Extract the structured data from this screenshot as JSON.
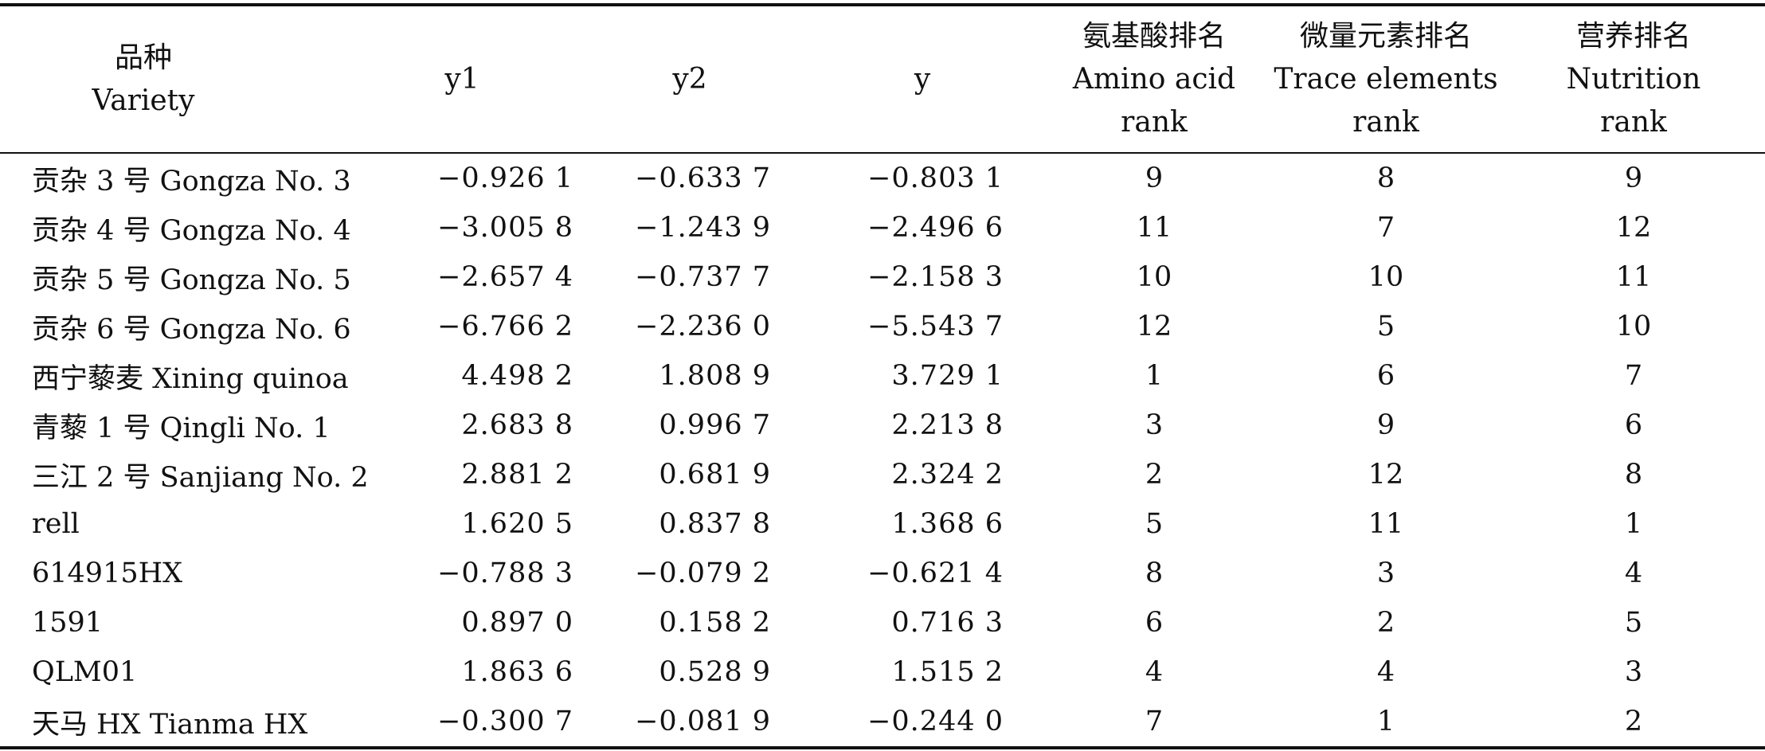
{
  "table": {
    "headers": {
      "variety": [
        "品种",
        "Variety"
      ],
      "y1": [
        "y1"
      ],
      "y2": [
        "y2"
      ],
      "y": [
        "y"
      ],
      "amino_rank": [
        "氨基酸排名",
        "Amino acid",
        "rank"
      ],
      "trace_rank": [
        "微量元素排名",
        "Trace elements",
        "rank"
      ],
      "nutrition_rank": [
        "营养排名",
        "Nutrition",
        "rank"
      ]
    },
    "rows": [
      {
        "variety": "贡杂 3 号 Gongza No. 3",
        "y1": "−0.926 1",
        "y2": "−0.633 7",
        "y": "−0.803 1",
        "amino_rank": "9",
        "trace_rank": "8",
        "nutrition_rank": "9"
      },
      {
        "variety": "贡杂 4 号 Gongza No. 4",
        "y1": "−3.005 8",
        "y2": "−1.243 9",
        "y": "−2.496 6",
        "amino_rank": "11",
        "trace_rank": "7",
        "nutrition_rank": "12"
      },
      {
        "variety": "贡杂 5 号 Gongza No. 5",
        "y1": "−2.657 4",
        "y2": "−0.737 7",
        "y": "−2.158 3",
        "amino_rank": "10",
        "trace_rank": "10",
        "nutrition_rank": "11"
      },
      {
        "variety": "贡杂 6 号 Gongza No. 6",
        "y1": "−6.766 2",
        "y2": "−2.236 0",
        "y": "−5.543 7",
        "amino_rank": "12",
        "trace_rank": "5",
        "nutrition_rank": "10"
      },
      {
        "variety": "西宁藜麦 Xining quinoa",
        "y1": "4.498 2",
        "y2": "1.808 9",
        "y": "3.729 1",
        "amino_rank": "1",
        "trace_rank": "6",
        "nutrition_rank": "7"
      },
      {
        "variety": "青藜 1 号 Qingli No. 1",
        "y1": "2.683 8",
        "y2": "0.996 7",
        "y": "2.213 8",
        "amino_rank": "3",
        "trace_rank": "9",
        "nutrition_rank": "6"
      },
      {
        "variety": "三江 2 号 Sanjiang No. 2",
        "y1": "2.881 2",
        "y2": "0.681 9",
        "y": "2.324 2",
        "amino_rank": "2",
        "trace_rank": "12",
        "nutrition_rank": "8"
      },
      {
        "variety": "rell",
        "y1": "1.620 5",
        "y2": "0.837 8",
        "y": "1.368 6",
        "amino_rank": "5",
        "trace_rank": "11",
        "nutrition_rank": "1"
      },
      {
        "variety": "614915HX",
        "y1": "−0.788 3",
        "y2": "−0.079 2",
        "y": "−0.621 4",
        "amino_rank": "8",
        "trace_rank": "3",
        "nutrition_rank": "4"
      },
      {
        "variety": "1591",
        "y1": "0.897 0",
        "y2": "0.158 2",
        "y": "0.716 3",
        "amino_rank": "6",
        "trace_rank": "2",
        "nutrition_rank": "5"
      },
      {
        "variety": "QLM01",
        "y1": "1.863 6",
        "y2": "0.528 9",
        "y": "1.515 2",
        "amino_rank": "4",
        "trace_rank": "4",
        "nutrition_rank": "3"
      },
      {
        "variety": "天马 HX Tianma HX",
        "y1": "−0.300 7",
        "y2": "−0.081 9",
        "y": "−0.244 0",
        "amino_rank": "7",
        "trace_rank": "1",
        "nutrition_rank": "2"
      }
    ]
  }
}
